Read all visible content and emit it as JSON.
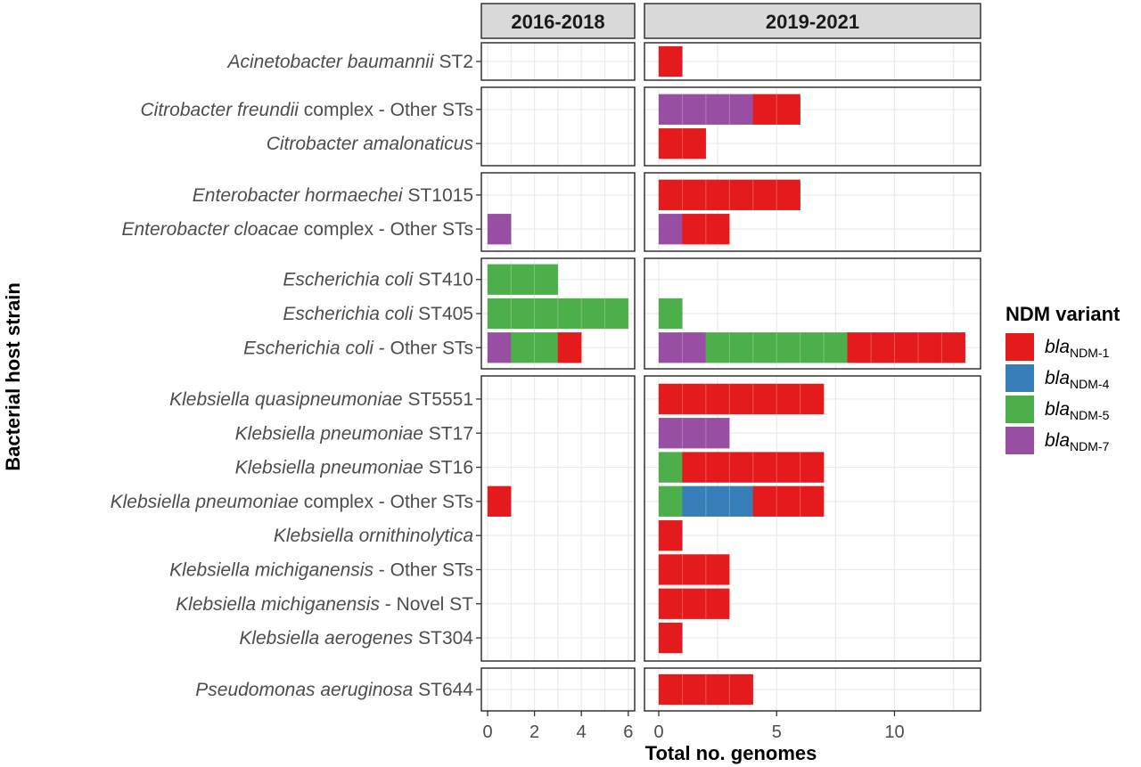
{
  "chart_data": {
    "type": "bar",
    "orientation": "horizontal",
    "stacked": true,
    "ylabel": "Bacterial host strain",
    "xlabel": "Total no. genomes",
    "facets": [
      {
        "label": "2016-2018",
        "xlim": [
          0,
          6.5
        ],
        "ticks": [
          0,
          2,
          4,
          6
        ],
        "tick_labels": [
          "0",
          "2",
          "4",
          "6"
        ]
      },
      {
        "label": "2019-2021",
        "xlim": [
          0,
          13.5
        ],
        "ticks": [
          0,
          5,
          10
        ],
        "tick_labels": [
          "0",
          "5",
          "10"
        ]
      }
    ],
    "series": [
      {
        "key": "ndm1",
        "name_italic": "bla",
        "name_sub": "NDM-1",
        "color": "#e41a1c"
      },
      {
        "key": "ndm4",
        "name_italic": "bla",
        "name_sub": "NDM-4",
        "color": "#377eb8"
      },
      {
        "key": "ndm5",
        "name_italic": "bla",
        "name_sub": "NDM-5",
        "color": "#4daf4a"
      },
      {
        "key": "ndm7",
        "name_italic": "bla",
        "name_sub": "NDM-7",
        "color": "#984ea3"
      }
    ],
    "stack_order": [
      "ndm7",
      "ndm5",
      "ndm4",
      "ndm1"
    ],
    "legend": {
      "title": "NDM variant",
      "position": "right"
    },
    "grid": true,
    "groups": [
      {
        "rows": [
          {
            "italic": "Acinetobacter baumannii",
            "rest": " ST2",
            "values": [
              {},
              {
                "ndm1": 1
              }
            ]
          }
        ]
      },
      {
        "rows": [
          {
            "italic": "Citrobacter freundii",
            "rest": " complex - Other STs",
            "values": [
              {},
              {
                "ndm7": 4,
                "ndm1": 2
              }
            ]
          },
          {
            "italic": "Citrobacter amalonaticus",
            "rest": "",
            "values": [
              {},
              {
                "ndm1": 2
              }
            ]
          }
        ]
      },
      {
        "rows": [
          {
            "italic": "Enterobacter hormaechei",
            "rest": " ST1015",
            "values": [
              {},
              {
                "ndm1": 6
              }
            ]
          },
          {
            "italic": "Enterobacter cloacae",
            "rest": " complex - Other STs",
            "values": [
              {
                "ndm7": 1
              },
              {
                "ndm7": 1,
                "ndm1": 2
              }
            ]
          }
        ]
      },
      {
        "rows": [
          {
            "italic": "Escherichia coli",
            "rest": " ST410",
            "values": [
              {
                "ndm5": 3
              },
              {}
            ]
          },
          {
            "italic": "Escherichia coli",
            "rest": " ST405",
            "values": [
              {
                "ndm5": 6
              },
              {
                "ndm5": 1
              }
            ]
          },
          {
            "italic": "Escherichia coli",
            "rest": " - Other STs",
            "values": [
              {
                "ndm7": 1,
                "ndm5": 2,
                "ndm1": 1
              },
              {
                "ndm7": 2,
                "ndm5": 6,
                "ndm1": 5
              }
            ]
          }
        ]
      },
      {
        "rows": [
          {
            "italic": "Klebsiella quasipneumoniae",
            "rest": " ST5551",
            "values": [
              {},
              {
                "ndm1": 7
              }
            ]
          },
          {
            "italic": "Klebsiella pneumoniae",
            "rest": " ST17",
            "values": [
              {},
              {
                "ndm7": 3
              }
            ]
          },
          {
            "italic": "Klebsiella pneumoniae",
            "rest": " ST16",
            "values": [
              {},
              {
                "ndm5": 1,
                "ndm1": 6
              }
            ]
          },
          {
            "italic": "Klebsiella pneumoniae",
            "rest": " complex - Other STs",
            "values": [
              {
                "ndm1": 1
              },
              {
                "ndm5": 1,
                "ndm4": 3,
                "ndm1": 3
              }
            ]
          },
          {
            "italic": "Klebsiella ornithinolytica",
            "rest": "",
            "values": [
              {},
              {
                "ndm1": 1
              }
            ]
          },
          {
            "italic": "Klebsiella michiganensis",
            "rest": " - Other STs",
            "values": [
              {},
              {
                "ndm1": 3
              }
            ]
          },
          {
            "italic": "Klebsiella michiganensis",
            "rest": " - Novel ST",
            "values": [
              {},
              {
                "ndm1": 3
              }
            ]
          },
          {
            "italic": "Klebsiella aerogenes",
            "rest": " ST304",
            "values": [
              {},
              {
                "ndm1": 1
              }
            ]
          }
        ]
      },
      {
        "rows": [
          {
            "italic": "Pseudomonas aeruginosa",
            "rest": " ST644",
            "values": [
              {},
              {
                "ndm1": 4
              }
            ]
          }
        ]
      }
    ]
  }
}
